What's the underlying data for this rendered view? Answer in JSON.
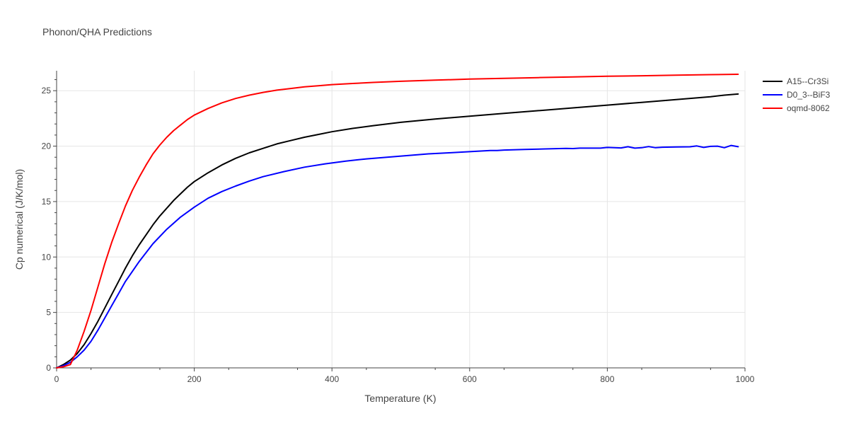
{
  "chart_data": {
    "type": "line",
    "title": "Phonon/QHA Predictions",
    "xlabel": "Temperature (K)",
    "ylabel": "Cp numerical (J/K/mol)",
    "xlim": [
      0,
      1000
    ],
    "ylim": [
      0,
      26.8
    ],
    "xticks": [
      0,
      200,
      400,
      600,
      800,
      1000
    ],
    "yticks": [
      0,
      5,
      10,
      15,
      20,
      25
    ],
    "grid": true,
    "legend_position": "top-right",
    "series": [
      {
        "name": "A15--Cr3Si",
        "color": "#000000",
        "x": [
          0,
          10,
          20,
          30,
          40,
          50,
          60,
          70,
          80,
          90,
          100,
          110,
          120,
          130,
          140,
          150,
          160,
          170,
          180,
          190,
          200,
          220,
          240,
          260,
          280,
          300,
          320,
          340,
          360,
          380,
          400,
          430,
          460,
          480,
          500,
          550,
          600,
          650,
          700,
          750,
          800,
          850,
          900,
          950,
          970,
          990
        ],
        "y": [
          0,
          0.3,
          0.7,
          1.3,
          2.1,
          3.1,
          4.2,
          5.4,
          6.6,
          7.8,
          9.0,
          10.1,
          11.1,
          12.0,
          12.9,
          13.7,
          14.4,
          15.1,
          15.7,
          16.3,
          16.8,
          17.6,
          18.3,
          18.9,
          19.4,
          19.8,
          20.2,
          20.5,
          20.8,
          21.05,
          21.3,
          21.6,
          21.85,
          22.0,
          22.15,
          22.45,
          22.7,
          22.95,
          23.2,
          23.45,
          23.7,
          23.95,
          24.2,
          24.45,
          24.6,
          24.7
        ]
      },
      {
        "name": "D0_3--BiF3",
        "color": "#0000ff",
        "x": [
          0,
          10,
          20,
          30,
          40,
          50,
          60,
          70,
          80,
          90,
          100,
          120,
          140,
          160,
          180,
          200,
          220,
          240,
          260,
          280,
          300,
          330,
          360,
          390,
          420,
          450,
          480,
          510,
          540,
          570,
          600,
          630,
          640,
          650,
          680,
          710,
          740,
          750,
          760,
          790,
          800,
          820,
          830,
          840,
          850,
          860,
          870,
          880,
          900,
          920,
          930,
          940,
          950,
          960,
          970,
          980,
          990
        ],
        "y": [
          0,
          0.2,
          0.5,
          1.0,
          1.6,
          2.4,
          3.4,
          4.5,
          5.6,
          6.7,
          7.8,
          9.6,
          11.2,
          12.5,
          13.6,
          14.5,
          15.3,
          15.9,
          16.4,
          16.85,
          17.25,
          17.7,
          18.1,
          18.4,
          18.65,
          18.85,
          19.0,
          19.15,
          19.3,
          19.4,
          19.5,
          19.6,
          19.6,
          19.65,
          19.7,
          19.75,
          19.8,
          19.78,
          19.82,
          19.82,
          19.88,
          19.84,
          19.95,
          19.82,
          19.86,
          19.96,
          19.86,
          19.9,
          19.92,
          19.94,
          20.02,
          19.88,
          19.98,
          20.0,
          19.86,
          20.06,
          19.95
        ]
      },
      {
        "name": "oqmd-8062",
        "color": "#ff0000",
        "x": [
          0,
          10,
          20,
          30,
          40,
          50,
          60,
          70,
          80,
          90,
          100,
          110,
          120,
          130,
          140,
          150,
          160,
          170,
          180,
          190,
          200,
          220,
          240,
          260,
          280,
          300,
          320,
          340,
          360,
          380,
          400,
          430,
          460,
          500,
          550,
          600,
          650,
          700,
          750,
          800,
          850,
          900,
          950,
          990
        ],
        "y": [
          0,
          0.1,
          0.3,
          1.6,
          3.3,
          5.2,
          7.3,
          9.4,
          11.3,
          13.0,
          14.6,
          16.0,
          17.2,
          18.3,
          19.3,
          20.1,
          20.8,
          21.4,
          21.9,
          22.4,
          22.8,
          23.4,
          23.9,
          24.3,
          24.6,
          24.85,
          25.05,
          25.2,
          25.35,
          25.45,
          25.55,
          25.65,
          25.75,
          25.85,
          25.95,
          26.05,
          26.12,
          26.18,
          26.24,
          26.3,
          26.35,
          26.4,
          26.45,
          26.48
        ]
      }
    ]
  }
}
